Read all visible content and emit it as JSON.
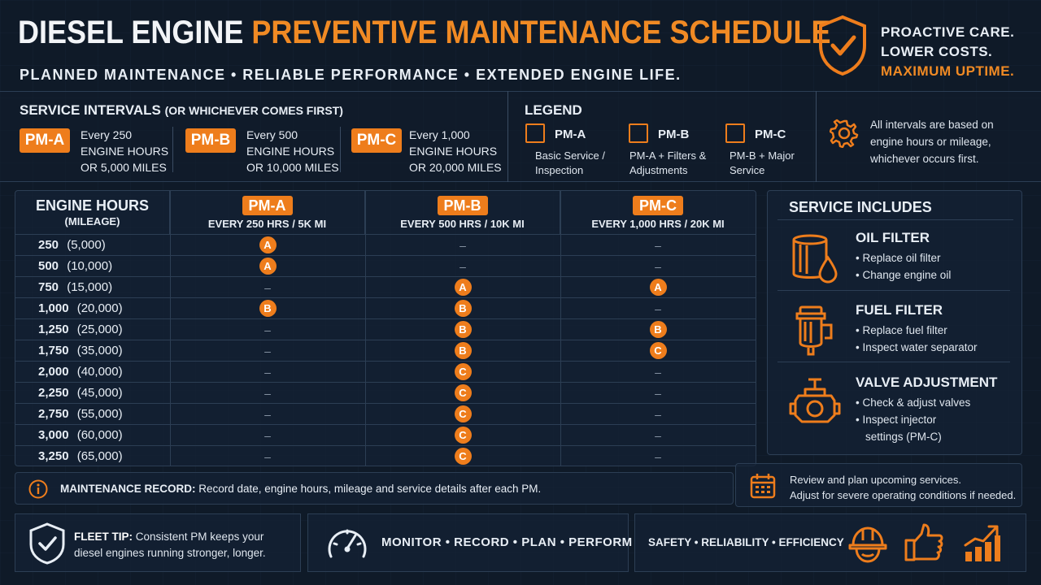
{
  "header": {
    "title_part1": "DIESEL ENGINE",
    "title_part2": "PREVENTIVE MAINTENANCE SCHEDULE",
    "subtitle": "PLANNED MAINTENANCE • RELIABLE PERFORMANCE • EXTENDED ENGINE LIFE.",
    "tagline": [
      "PROACTIVE CARE.",
      "LOWER COSTS.",
      "MAXIMUM UPTIME."
    ],
    "shield_icon": "shield-check-icon"
  },
  "intervals": {
    "title": "SERVICE INTERVALS",
    "title_note": "(OR WHICHEVER COMES FIRST)",
    "items": [
      {
        "code": "PM-A",
        "line1": "Every 250",
        "line2": "ENGINE HOURS",
        "line3": "OR 5,000 MILES"
      },
      {
        "code": "PM-B",
        "line1": "Every 500",
        "line2": "ENGINE HOURS",
        "line3": "OR 10,000 MILES"
      },
      {
        "code": "PM-C",
        "line1": "Every 1,000",
        "line2": "ENGINE HOURS",
        "line3": "OR 20,000 MILES"
      }
    ]
  },
  "legend": {
    "title": "LEGEND",
    "items": [
      {
        "name": "PM-A",
        "desc1": "Basic Service /",
        "desc2": "Inspection"
      },
      {
        "name": "PM-B",
        "desc1": "PM-A + Filters &",
        "desc2": "Adjustments"
      },
      {
        "name": "PM-C",
        "desc1": "PM-B + Major",
        "desc2": "Service"
      }
    ],
    "note": [
      "All intervals are based on",
      "engine hours or mileage,",
      "whichever occurs first."
    ],
    "note_icon": "gear-icon"
  },
  "schedule": {
    "col0_title": "ENGINE HOURS",
    "col0_sub": "(MILEAGE)",
    "columns": [
      {
        "badge": "PM-A",
        "sub": "EVERY 250 HRS / 5K MI"
      },
      {
        "badge": "PM-B",
        "sub": "EVERY 500 HRS / 10K MI"
      },
      {
        "badge": "PM-C",
        "sub": "EVERY 1,000 HRS / 20K MI"
      }
    ],
    "rows": [
      {
        "hours": "250",
        "miles": "(5,000)",
        "cells": [
          "A",
          "–",
          "–"
        ]
      },
      {
        "hours": "500",
        "miles": "(10,000)",
        "cells": [
          "A",
          "–",
          "–"
        ]
      },
      {
        "hours": "750",
        "miles": "(15,000)",
        "cells": [
          "–",
          "A",
          "A"
        ]
      },
      {
        "hours": "1,000",
        "miles": "(20,000)",
        "cells": [
          "B",
          "B",
          "–"
        ]
      },
      {
        "hours": "1,250",
        "miles": "(25,000)",
        "cells": [
          "–",
          "B",
          "B"
        ]
      },
      {
        "hours": "1,750",
        "miles": "(35,000)",
        "cells": [
          "–",
          "B",
          "C"
        ]
      },
      {
        "hours": "2,000",
        "miles": "(40,000)",
        "cells": [
          "–",
          "C",
          "–"
        ]
      },
      {
        "hours": "2,250",
        "miles": "(45,000)",
        "cells": [
          "–",
          "C",
          "–"
        ]
      },
      {
        "hours": "2,750",
        "miles": "(55,000)",
        "cells": [
          "–",
          "C",
          "–"
        ]
      },
      {
        "hours": "3,000",
        "miles": "(60,000)",
        "cells": [
          "–",
          "C",
          "–"
        ]
      },
      {
        "hours": "3,250",
        "miles": "(65,000)",
        "cells": [
          "–",
          "C",
          "–"
        ]
      }
    ]
  },
  "includes": {
    "title": "SERVICE INCLUDES",
    "items": [
      {
        "name": "OIL FILTER",
        "icon": "oil-filter-icon",
        "bullets": [
          "• Replace oil filter",
          "• Change engine oil"
        ]
      },
      {
        "name": "FUEL FILTER",
        "icon": "fuel-filter-icon",
        "bullets": [
          "• Replace fuel filter",
          "• Inspect water separator"
        ]
      },
      {
        "name": "VALVE ADJUSTMENT",
        "icon": "engine-valve-icon",
        "bullets": [
          "• Check & adjust valves",
          "• Inspect injector",
          "   settings (PM-C)"
        ]
      }
    ]
  },
  "record": {
    "label": "MAINTENANCE RECORD:",
    "text": "Record date, engine hours, mileage and service details after each PM."
  },
  "review": {
    "line1": "Review and plan upcoming services.",
    "line2": "Adjust for severe operating conditions if needed."
  },
  "footer": {
    "tip_label": "FLEET TIP:",
    "tip_text1": "Consistent PM keeps your",
    "tip_text2": "diesel engines running stronger, longer.",
    "motto": "MONITOR • RECORD • PLAN • PERFORM",
    "values": "SAFETY • RELIABILITY • EFFICIENCY"
  },
  "colors": {
    "accent": "#ee7d1c",
    "background": "#0f1a28",
    "border": "#2c3e54"
  }
}
